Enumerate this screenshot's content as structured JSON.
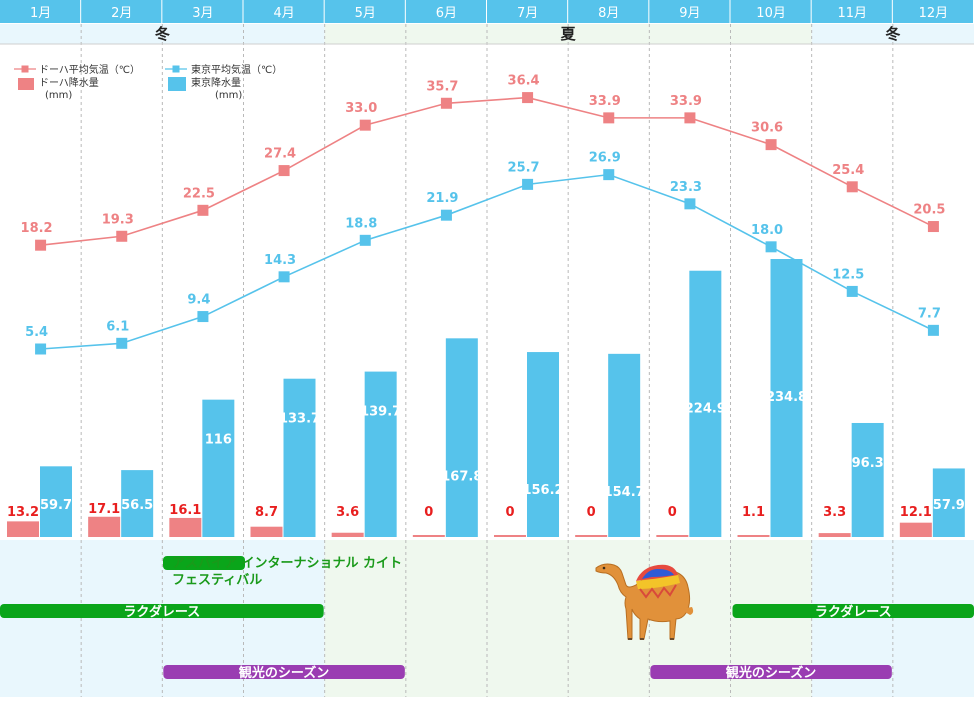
{
  "chart_data": {
    "type": "bar+line",
    "categories": [
      "1月",
      "2月",
      "3月",
      "4月",
      "5月",
      "6月",
      "7月",
      "8月",
      "9月",
      "10月",
      "11月",
      "12月"
    ],
    "seasons": [
      {
        "label": "冬",
        "from": 0,
        "to": 3
      },
      {
        "label": "夏",
        "from": 4,
        "to": 9
      },
      {
        "label": "冬",
        "from": 10,
        "to": 11
      }
    ],
    "lines": [
      {
        "name": "ドーハ平均気温（℃）",
        "color": "#ee8284",
        "values": [
          18.2,
          19.3,
          22.5,
          27.4,
          33.0,
          35.7,
          36.4,
          33.9,
          33.9,
          30.6,
          25.4,
          20.5
        ],
        "labels": [
          "18.2",
          "19.3",
          "22.5",
          "27.4",
          "33.0",
          "35.7",
          "36.4",
          "33.9",
          "33.9",
          "30.6",
          "25.4",
          "20.5"
        ]
      },
      {
        "name": "東京平均気温（℃）",
        "color": "#56c3eb",
        "values": [
          5.4,
          6.1,
          9.4,
          14.3,
          18.8,
          21.9,
          25.7,
          26.9,
          23.3,
          18.0,
          12.5,
          7.7
        ],
        "labels": [
          "5.4",
          "6.1",
          "9.4",
          "14.3",
          "18.8",
          "21.9",
          "25.7",
          "26.9",
          "23.3",
          "18.0",
          "12.5",
          "7.7"
        ]
      }
    ],
    "bars": [
      {
        "name": "ドーハ降水量",
        "unit": "(mm)",
        "color": "#ee8284",
        "values": [
          13.2,
          17.1,
          16.1,
          8.7,
          3.6,
          0,
          0,
          0,
          0,
          1.1,
          3.3,
          12.1
        ],
        "labels": [
          "13.2",
          "17.1",
          "16.1",
          "8.7",
          "3.6",
          "0",
          "0",
          "0",
          "0",
          "1.1",
          "3.3",
          "12.1"
        ]
      },
      {
        "name": "東京降水量",
        "unit": "(mm)",
        "color": "#56c3eb",
        "values": [
          59.7,
          56.5,
          116,
          133.7,
          139.7,
          167.8,
          156.2,
          154.7,
          224.9,
          234.8,
          96.3,
          57.9
        ],
        "labels": [
          "59.7",
          "56.5",
          "116",
          "133.7",
          "139.7",
          "167.8",
          "156.2",
          "154.7",
          "224.9",
          "234.8",
          "96.3",
          "57.9"
        ]
      }
    ],
    "events": [
      {
        "label": "ラクダレース",
        "from_month": 1,
        "to_month": 4,
        "color": "#0aa51a"
      },
      {
        "label": "ラクダレース",
        "from_month": 10,
        "to_month": 12,
        "color": "#0aa51a"
      },
      {
        "label": "観光のシーズン",
        "from_month": 3,
        "to_month": 5,
        "color": "#9a3db2"
      },
      {
        "label": "観光のシーズン",
        "from_month": 9,
        "to_month": 11,
        "color": "#9a3db2"
      }
    ],
    "festival": {
      "line1": "アスパイア インターナショナル カイト",
      "line2": "フェスティバル",
      "color": "#0aa51a"
    },
    "colors": {
      "header": "#56c3eb",
      "winter_bg": "#e9f7fd",
      "summer_bg": "#eff8ee",
      "grid": "#b9b9b9"
    }
  }
}
